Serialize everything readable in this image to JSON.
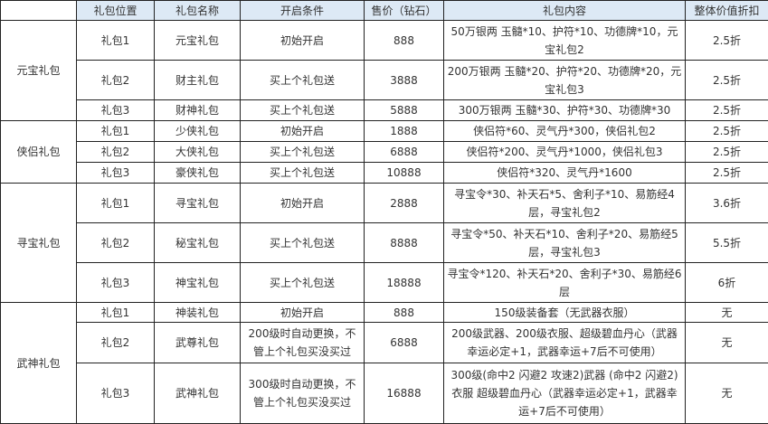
{
  "headers": [
    "",
    "礼包位置",
    "礼包名称",
    "开启条件",
    "售价（钻石）",
    "礼包内容",
    "整体价值折扣"
  ],
  "colors": {
    "header_bg": "#dde9f5",
    "border": "#222222",
    "text": "#333333"
  },
  "groups": [
    {
      "name": "元宝礼包",
      "rows": [
        {
          "pos": "礼包1",
          "name": "元宝礼包",
          "cond": "初始开启",
          "price": "888",
          "content": "50万银两 玉髓*10、护符*10、功德牌*10，元宝礼包2",
          "discount": "2.5折"
        },
        {
          "pos": "礼包2",
          "name": "财主礼包",
          "cond": "买上个礼包送",
          "price": "3888",
          "content": "200万银两 玉髓*20、护符*20、功德牌*20，元宝礼包3",
          "discount": "2.5折"
        },
        {
          "pos": "礼包3",
          "name": "财神礼包",
          "cond": "买上个礼包送",
          "price": "5888",
          "content": "300万银两 玉髓*30、护符*30、功德牌*30",
          "discount": "2.5折"
        }
      ]
    },
    {
      "name": "侠侣礼包",
      "rows": [
        {
          "pos": "礼包1",
          "name": "少侠礼包",
          "cond": "初始开启",
          "price": "1888",
          "content": "侠侣符*60、灵气丹*300，侠侣礼包2",
          "discount": "2.5折"
        },
        {
          "pos": "礼包2",
          "name": "大侠礼包",
          "cond": "买上个礼包送",
          "price": "6888",
          "content": "侠侣符*200、灵气丹*1000，侠侣礼包3",
          "discount": "2.5折"
        },
        {
          "pos": "礼包3",
          "name": "豪侠礼包",
          "cond": "买上个礼包送",
          "price": "10888",
          "content": "侠侣符*320、灵气丹*1600",
          "discount": "2.5折"
        }
      ]
    },
    {
      "name": "寻宝礼包",
      "rows": [
        {
          "pos": "礼包1",
          "name": "寻宝礼包",
          "cond": "初始开启",
          "price": "2888",
          "content": "寻宝令*30、补天石*5、舍利子*10、易筋经4层，寻宝礼包2",
          "discount": "3.6折"
        },
        {
          "pos": "礼包2",
          "name": "秘宝礼包",
          "cond": "买上个礼包送",
          "price": "8888",
          "content": "寻宝令*50、补天石*10、舍利子*20、易筋经5层，寻宝礼包3",
          "discount": "5.5折"
        },
        {
          "pos": "礼包3",
          "name": "神宝礼包",
          "cond": "买上个礼包送",
          "price": "18888",
          "content": "寻宝令*120、补天石*20、舍利子*30、易筋经6层",
          "discount": "6折"
        }
      ]
    },
    {
      "name": "武神礼包",
      "rows": [
        {
          "pos": "礼包1",
          "name": "神装礼包",
          "cond": "初始开启",
          "price": "888",
          "content": "150级装备套（无武器衣服）",
          "discount": "无"
        },
        {
          "pos": "礼包2",
          "name": "武尊礼包",
          "cond": "200级时自动更换，不管上个礼包买没买过",
          "price": "6888",
          "content": "200级武器、200级衣服、超级碧血丹心（武器幸运必定+1，武器幸运+7后不可使用）",
          "discount": "无"
        },
        {
          "pos": "礼包3",
          "name": "武神礼包",
          "cond": "300级时自动更换，不管上个礼包买没买过",
          "price": "16888",
          "content": "300级(命中2 闪避2 攻速2)武器 (命中2 闪避2)衣服 超级碧血丹心（武器幸运必定+1，武器幸运+7后不可使用）",
          "discount": "无"
        }
      ]
    }
  ]
}
